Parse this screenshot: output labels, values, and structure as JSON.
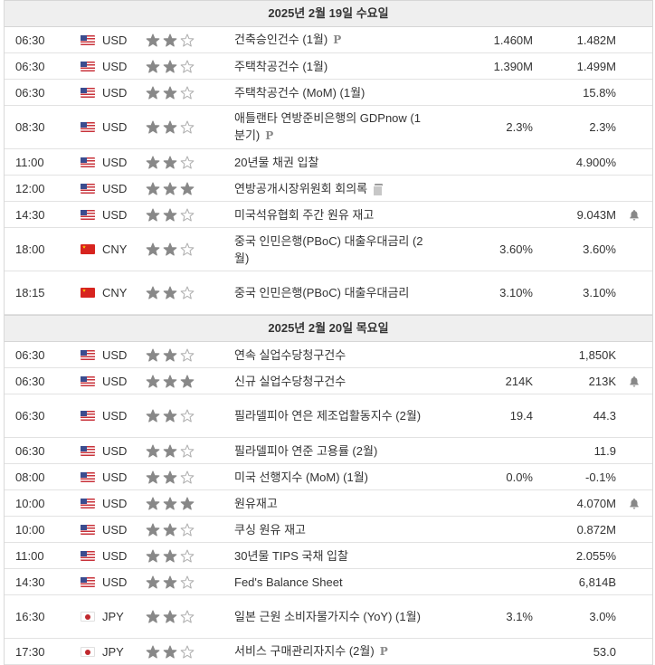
{
  "colors": {
    "star_filled": "#888888",
    "star_empty": "#ffffff",
    "day_header_bg": "#efefef",
    "bell": "#888888"
  },
  "days": [
    {
      "label": "2025년 2월 19일 수요일",
      "events": [
        {
          "time": "06:30",
          "flag": "us",
          "currency": "USD",
          "importance": 2,
          "title": "건축승인건수 (1월)",
          "badge": "P",
          "previous": "1.460M",
          "actual": "1.482M",
          "alert": false
        },
        {
          "time": "06:30",
          "flag": "us",
          "currency": "USD",
          "importance": 2,
          "title": "주택착공건수 (1월)",
          "badge": "",
          "previous": "1.390M",
          "actual": "1.499M",
          "alert": false
        },
        {
          "time": "06:30",
          "flag": "us",
          "currency": "USD",
          "importance": 2,
          "title": "주택착공건수 (MoM) (1월)",
          "badge": "",
          "previous": "",
          "actual": "15.8%",
          "alert": false
        },
        {
          "time": "08:30",
          "flag": "us",
          "currency": "USD",
          "importance": 2,
          "title": "애틀랜타 연방준비은행의 GDPnow (1분기)",
          "badge": "P",
          "previous": "2.3%",
          "actual": "2.3%",
          "alert": false
        },
        {
          "time": "11:00",
          "flag": "us",
          "currency": "USD",
          "importance": 2,
          "title": "20년물 채권 입찰",
          "badge": "",
          "previous": "",
          "actual": "4.900%",
          "alert": false
        },
        {
          "time": "12:00",
          "flag": "us",
          "currency": "USD",
          "importance": 3,
          "title": "연방공개시장위원회 회의록",
          "badge": "doc",
          "previous": "",
          "actual": "",
          "alert": false
        },
        {
          "time": "14:30",
          "flag": "us",
          "currency": "USD",
          "importance": 2,
          "title": "미국석유협회 주간 원유 재고",
          "badge": "",
          "previous": "",
          "actual": "9.043M",
          "alert": true
        },
        {
          "time": "18:00",
          "flag": "cn",
          "currency": "CNY",
          "importance": 2,
          "title": "중국 인민은행(PBoC) 대출우대금리 (2월)",
          "badge": "",
          "previous": "3.60%",
          "actual": "3.60%",
          "alert": false
        },
        {
          "time": "18:15",
          "flag": "cn",
          "currency": "CNY",
          "importance": 2,
          "title": "중국 인민은행(PBoC) 대출우대금리",
          "badge": "",
          "previous": "3.10%",
          "actual": "3.10%",
          "alert": false
        }
      ]
    },
    {
      "label": "2025년 2월 20일 목요일",
      "events": [
        {
          "time": "06:30",
          "flag": "us",
          "currency": "USD",
          "importance": 2,
          "title": "연속 실업수당청구건수",
          "badge": "",
          "previous": "",
          "actual": "1,850K",
          "alert": false
        },
        {
          "time": "06:30",
          "flag": "us",
          "currency": "USD",
          "importance": 3,
          "title": "신규 실업수당청구건수",
          "badge": "",
          "previous": "214K",
          "actual": "213K",
          "alert": true
        },
        {
          "time": "06:30",
          "flag": "us",
          "currency": "USD",
          "importance": 2,
          "title": "필라델피아 연은 제조업활동지수 (2월)",
          "badge": "",
          "previous": "19.4",
          "actual": "44.3",
          "alert": false
        },
        {
          "time": "06:30",
          "flag": "us",
          "currency": "USD",
          "importance": 2,
          "title": "필라델피아 연준 고용률 (2월)",
          "badge": "",
          "previous": "",
          "actual": "11.9",
          "alert": false
        },
        {
          "time": "08:00",
          "flag": "us",
          "currency": "USD",
          "importance": 2,
          "title": "미국 선행지수 (MoM) (1월)",
          "badge": "",
          "previous": "0.0%",
          "actual": "-0.1%",
          "alert": false
        },
        {
          "time": "10:00",
          "flag": "us",
          "currency": "USD",
          "importance": 3,
          "title": "원유재고",
          "badge": "",
          "previous": "",
          "actual": "4.070M",
          "alert": true
        },
        {
          "time": "10:00",
          "flag": "us",
          "currency": "USD",
          "importance": 2,
          "title": "쿠싱 원유 재고",
          "badge": "",
          "previous": "",
          "actual": "0.872M",
          "alert": false
        },
        {
          "time": "11:00",
          "flag": "us",
          "currency": "USD",
          "importance": 2,
          "title": "30년물 TIPS 국채 입찰",
          "badge": "",
          "previous": "",
          "actual": "2.055%",
          "alert": false
        },
        {
          "time": "14:30",
          "flag": "us",
          "currency": "USD",
          "importance": 2,
          "title": "Fed's Balance Sheet",
          "badge": "",
          "previous": "",
          "actual": "6,814B",
          "alert": false
        },
        {
          "time": "16:30",
          "flag": "jp",
          "currency": "JPY",
          "importance": 2,
          "title": "일본 근원 소비자물가지수 (YoY) (1월)",
          "badge": "",
          "previous": "3.1%",
          "actual": "3.0%",
          "alert": false
        },
        {
          "time": "17:30",
          "flag": "jp",
          "currency": "JPY",
          "importance": 2,
          "title": "서비스 구매관리자지수 (2월)",
          "badge": "P",
          "previous": "",
          "actual": "53.0",
          "alert": false
        }
      ]
    }
  ]
}
